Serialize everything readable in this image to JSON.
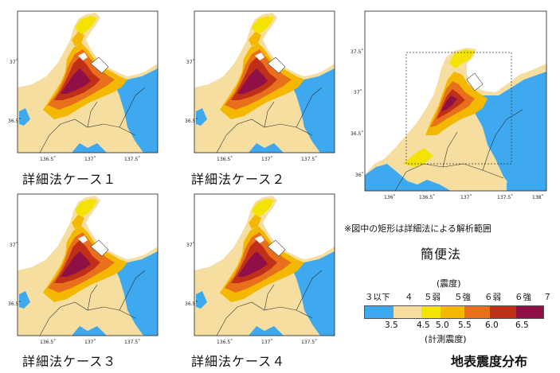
{
  "case_maps": [
    {
      "label": "詳細法ケース１"
    },
    {
      "label": "詳細法ケース２"
    },
    {
      "label": "詳細法ケース３"
    },
    {
      "label": "詳細法ケース４"
    }
  ],
  "small_map_axes": {
    "x_ticks": [
      "136.5˚",
      "137˚",
      "137.5˚"
    ],
    "y_ticks": [
      "37˚",
      "36.5˚"
    ]
  },
  "simple_map": {
    "x_ticks": [
      "136˚",
      "136.5˚",
      "137˚",
      "137.5˚",
      "138˚"
    ],
    "y_ticks": [
      "37.5˚",
      "37˚",
      "36.5˚",
      "36˚"
    ],
    "note": "※図中の矩形は詳細法による解析範囲",
    "label": "簡便法"
  },
  "legend": {
    "title": "(震度)",
    "intensity_classes": [
      "３以下",
      "４",
      "５弱",
      "５強",
      "６弱",
      "６強",
      "７"
    ],
    "boundaries": [
      "3.5",
      "4.5",
      "5.0",
      "5.5",
      "6.0",
      "6.5"
    ],
    "caption": "(計測震度)",
    "colors": [
      "#3fa9f0",
      "#f5dea0",
      "#f4e300",
      "#f4b800",
      "#e8701c",
      "#c03018",
      "#8e1047"
    ]
  },
  "figure_title": "地表震度分布"
}
